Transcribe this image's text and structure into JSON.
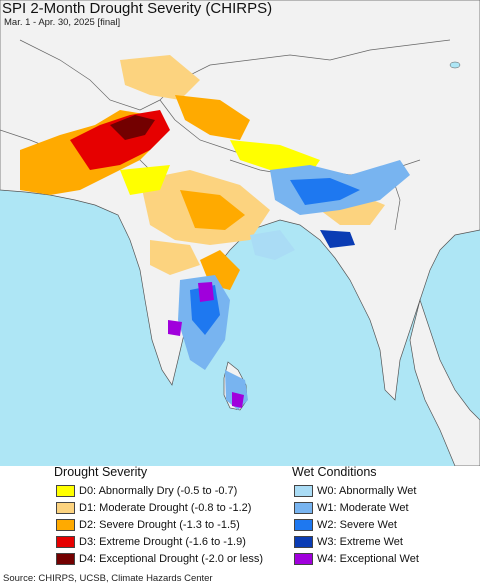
{
  "title": "SPI 2-Month Drought Severity (CHIRPS)",
  "subtitle": "Mar. 1 - Apr. 30, 2025 [final]",
  "source": "Source: CHIRPS, UCSB, Climate Hazards Center",
  "legend": {
    "drought_heading": "Drought Severity",
    "wet_heading": "Wet Conditions",
    "drought_items": [
      {
        "label": "D0: Abnormally Dry (-0.5 to -0.7)",
        "color": "#ffff00"
      },
      {
        "label": "D1: Moderate Drought (-0.8 to -1.2)",
        "color": "#fcd37f"
      },
      {
        "label": "D2: Severe Drought (-1.3 to -1.5)",
        "color": "#ffaa00"
      },
      {
        "label": "D3: Extreme Drought (-1.6 to -1.9)",
        "color": "#e60000"
      },
      {
        "label": "D4: Exceptional Drought (-2.0 or less)",
        "color": "#730000"
      }
    ],
    "wet_items": [
      {
        "label": "W0: Abnormally Wet",
        "color": "#aadcf5"
      },
      {
        "label": "W1: Moderate Wet",
        "color": "#78b4f0"
      },
      {
        "label": "W2: Severe Wet",
        "color": "#1e78f0"
      },
      {
        "label": "W3: Extreme Wet",
        "color": "#0a3cb4"
      },
      {
        "label": "W4: Exceptional Wet",
        "color": "#a000dc"
      }
    ]
  },
  "colors": {
    "ocean": "#aee6f5",
    "land": "#f2f2f2",
    "border": "#555555"
  }
}
